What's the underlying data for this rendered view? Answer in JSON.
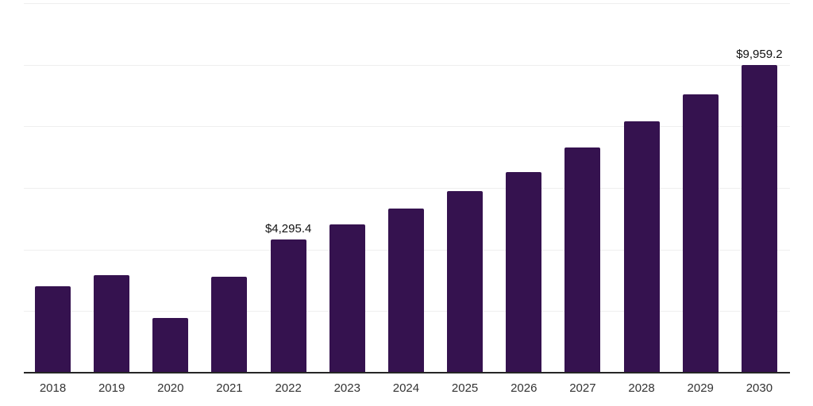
{
  "chart_data": {
    "type": "bar",
    "title": "",
    "xlabel": "",
    "ylabel": "",
    "categories": [
      "2018",
      "2019",
      "2020",
      "2021",
      "2022",
      "2023",
      "2024",
      "2025",
      "2026",
      "2027",
      "2028",
      "2029",
      "2030"
    ],
    "values": [
      2780,
      3140,
      1760,
      3090,
      4295.4,
      4780,
      5310,
      5880,
      6500,
      7290,
      8130,
      9010,
      9959.2
    ],
    "data_labels": {
      "2022": "$4,295.4",
      "2030": "$9,959.2"
    },
    "ylim": [
      0,
      12000
    ],
    "gridline_step": 2000,
    "grid": "horizontal",
    "legend_position": "none",
    "colors": {
      "bar": "#35124F",
      "gridline": "#efefef",
      "axis_line": "#262626",
      "tick_label": "#333333",
      "data_label": "#111111",
      "background": "#ffffff"
    }
  }
}
